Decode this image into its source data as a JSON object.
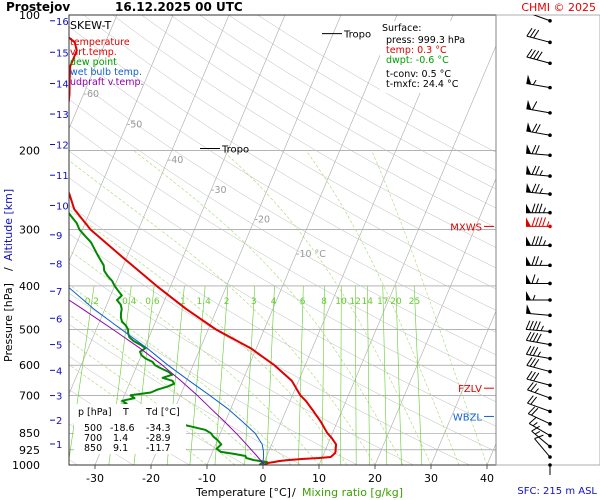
{
  "header": {
    "station": "Prostejov",
    "datetime": "16.12.2025 00 UTC",
    "credit": "CHMI © 2025"
  },
  "legend": {
    "title": "SKEW-T",
    "items": [
      {
        "label": "temperature",
        "color": "#e00000"
      },
      {
        "label": "virt.temp.",
        "color": "#e00000"
      },
      {
        "label": "dew point",
        "color": "#00a000"
      },
      {
        "label": "wet bulb temp.",
        "color": "#1060d0"
      },
      {
        "label": "udpraft v.temp.",
        "color": "#9000b0"
      }
    ]
  },
  "surface": {
    "title": "Surface:",
    "press": "press: 999.3 hPa",
    "temp": "temp: 0.3 °C",
    "dwpt": "dwpt: -0.6 °C",
    "tconv": "t-conv: 0.5 °C",
    "tmxfc": "t-mxfc: 24.4 °C"
  },
  "table": {
    "headers": [
      "p [hPa]",
      "T",
      "Td [°C]"
    ],
    "rows": [
      [
        "500",
        "-18.6",
        "-34.3"
      ],
      [
        "700",
        "1.4",
        "-28.9"
      ],
      [
        "850",
        "9.1",
        "-11.7"
      ]
    ]
  },
  "levels": {
    "tropo": "Tropo",
    "mxws": "MXWS",
    "fzlv": "FZLV",
    "wbzl": "WBZL",
    "sfc": "SFC: 215 m ASL"
  },
  "axes": {
    "xlabel_temp": "Temperature [°C]",
    "xlabel_sep": "/",
    "xlabel_mix": "Mixing ratio [g/kg]",
    "ylabel_p": "Pressure [hPa]",
    "ylabel_sep": "/",
    "ylabel_alt": "Altitude [km]"
  },
  "colors": {
    "temp": "#e00000",
    "dew": "#008800",
    "wetbulb": "#1060d0",
    "parcel": "#9000b0",
    "mixing": "#66cc33",
    "altitude": "#1010c0",
    "grid": "#999999"
  },
  "chart_data": {
    "type": "line",
    "title": "Prostejov 16.12.2025 00 UTC",
    "xlabel": "Temperature [°C] / Mixing ratio [g/kg]",
    "ylabel": "Pressure [hPa] / Altitude [km]",
    "xlim": [
      -37,
      44
    ],
    "ylim": [
      1000,
      100
    ],
    "y_scale": "log",
    "x_ticks": [
      -30,
      -20,
      -10,
      0,
      10,
      20,
      30,
      40
    ],
    "p_ticks": [
      100,
      200,
      300,
      400,
      500,
      600,
      700,
      850,
      925,
      1000
    ],
    "alt_ticks_km": [
      {
        "km": 1,
        "p": 898
      },
      {
        "km": 2,
        "p": 795
      },
      {
        "km": 3,
        "p": 701
      },
      {
        "km": 4,
        "p": 616
      },
      {
        "km": 5,
        "p": 540
      },
      {
        "km": 6,
        "p": 472
      },
      {
        "km": 7,
        "p": 411
      },
      {
        "km": 8,
        "p": 357
      },
      {
        "km": 9,
        "p": 308
      },
      {
        "km": 10,
        "p": 265
      },
      {
        "km": 11,
        "p": 227
      },
      {
        "km": 12,
        "p": 194
      },
      {
        "km": 13,
        "p": 166
      },
      {
        "km": 14,
        "p": 142
      },
      {
        "km": 15,
        "p": 121
      },
      {
        "km": 16,
        "p": 103
      }
    ],
    "isotherm_labels": [
      {
        "t": -80,
        "p": 110,
        "label": "-80 °C"
      },
      {
        "t": -70,
        "p": 130,
        "label": "-70"
      },
      {
        "t": -60,
        "p": 150,
        "label": "-60"
      },
      {
        "t": -50,
        "p": 175,
        "label": "-50"
      },
      {
        "t": -40,
        "p": 210,
        "label": "-40"
      },
      {
        "t": -30,
        "p": 245,
        "label": "-30"
      },
      {
        "t": -20,
        "p": 285,
        "label": "-20"
      },
      {
        "t": -10,
        "p": 340,
        "label": "-10 °C"
      }
    ],
    "mixing_ratios": [
      {
        "w": 0.2,
        "label": "0.2"
      },
      {
        "w": 0.4,
        "label": "0.4"
      },
      {
        "w": 0.6,
        "label": "0.6"
      },
      {
        "w": 1,
        "label": "1"
      },
      {
        "w": 1.4,
        "label": "1.4"
      },
      {
        "w": 2,
        "label": "2"
      },
      {
        "w": 3,
        "label": "3"
      },
      {
        "w": 4,
        "label": "4"
      },
      {
        "w": 6,
        "label": "6"
      },
      {
        "w": 8,
        "label": "8"
      },
      {
        "w": 10,
        "label": "10"
      },
      {
        "w": 12,
        "label": "12"
      },
      {
        "w": 14,
        "label": "14"
      },
      {
        "w": 17,
        "label": "17"
      },
      {
        "w": 20,
        "label": "20"
      },
      {
        "w": 25,
        "label": "25"
      }
    ],
    "level_markers": {
      "tropo": [
        110,
        198
      ],
      "mxws": 295,
      "fzlv": 675,
      "wbzl": 780
    },
    "series": [
      {
        "name": "temperature",
        "points": [
          [
            1000,
            0.3
          ],
          [
            990,
            0.7
          ],
          [
            985,
            1.8
          ],
          [
            980,
            2.5
          ],
          [
            975,
            4.0
          ],
          [
            970,
            6.5
          ],
          [
            965,
            9.5
          ],
          [
            960,
            11.5
          ],
          [
            940,
            12.0
          ],
          [
            900,
            11.5
          ],
          [
            870,
            10.2
          ],
          [
            850,
            9.1
          ],
          [
            800,
            7.0
          ],
          [
            760,
            5.0
          ],
          [
            720,
            2.8
          ],
          [
            700,
            1.4
          ],
          [
            650,
            -1.2
          ],
          [
            600,
            -5.5
          ],
          [
            550,
            -11.0
          ],
          [
            500,
            -18.6
          ],
          [
            450,
            -25.5
          ],
          [
            400,
            -32.5
          ],
          [
            350,
            -40.0
          ],
          [
            300,
            -48.5
          ],
          [
            270,
            -53.0
          ],
          [
            250,
            -55.0
          ],
          [
            230,
            -57.5
          ],
          [
            215,
            -58.8
          ],
          [
            200,
            -59.5
          ],
          [
            190,
            -60.2
          ],
          [
            180,
            -60.8
          ],
          [
            170,
            -61.2
          ],
          [
            160,
            -61.8
          ],
          [
            150,
            -62.5
          ],
          [
            140,
            -63.5
          ],
          [
            130,
            -64.5
          ],
          [
            120,
            -64.5
          ],
          [
            115,
            -65.5
          ],
          [
            112,
            -67.0
          ],
          [
            110,
            -68.0
          ],
          [
            105,
            -68.5
          ],
          [
            100,
            -68.8
          ]
        ]
      },
      {
        "name": "dew point",
        "points": [
          [
            1000,
            -0.6
          ],
          [
            990,
            -0.4
          ],
          [
            985,
            0.5
          ],
          [
            975,
            -2.0
          ],
          [
            965,
            -3.5
          ],
          [
            955,
            -3.8
          ],
          [
            945,
            -6.0
          ],
          [
            935,
            -8.5
          ],
          [
            920,
            -9.5
          ],
          [
            900,
            -9.0
          ],
          [
            880,
            -10.0
          ],
          [
            865,
            -11.0
          ],
          [
            850,
            -11.7
          ],
          [
            835,
            -13.0
          ],
          [
            820,
            -16.0
          ],
          [
            800,
            -20.0
          ],
          [
            790,
            -22.5
          ],
          [
            780,
            -22.0
          ],
          [
            770,
            -25.0
          ],
          [
            760,
            -27.5
          ],
          [
            750,
            -29.0
          ],
          [
            740,
            -30.5
          ],
          [
            730,
            -29.0
          ],
          [
            720,
            -30.0
          ],
          [
            710,
            -28.0
          ],
          [
            700,
            -28.9
          ],
          [
            690,
            -25.5
          ],
          [
            680,
            -24.5
          ],
          [
            670,
            -23.0
          ],
          [
            660,
            -22.0
          ],
          [
            650,
            -22.5
          ],
          [
            640,
            -24.5
          ],
          [
            630,
            -23.0
          ],
          [
            620,
            -24.0
          ],
          [
            610,
            -25.5
          ],
          [
            600,
            -26.8
          ],
          [
            590,
            -27.5
          ],
          [
            580,
            -29.0
          ],
          [
            570,
            -30.0
          ],
          [
            560,
            -30.5
          ],
          [
            550,
            -29.8
          ],
          [
            540,
            -31.0
          ],
          [
            530,
            -32.5
          ],
          [
            520,
            -33.5
          ],
          [
            510,
            -34.0
          ],
          [
            500,
            -34.3
          ],
          [
            490,
            -35.0
          ],
          [
            480,
            -36.0
          ],
          [
            470,
            -36.5
          ],
          [
            460,
            -36.8
          ],
          [
            450,
            -37.0
          ],
          [
            440,
            -37.5
          ],
          [
            430,
            -38.5
          ],
          [
            420,
            -38.0
          ],
          [
            410,
            -39.0
          ],
          [
            400,
            -40.0
          ],
          [
            390,
            -40.8
          ],
          [
            380,
            -42.0
          ],
          [
            370,
            -43.0
          ],
          [
            360,
            -43.5
          ],
          [
            350,
            -44.5
          ],
          [
            340,
            -45.5
          ],
          [
            330,
            -46.5
          ],
          [
            320,
            -47.5
          ],
          [
            310,
            -49.0
          ],
          [
            300,
            -50.5
          ],
          [
            290,
            -51.5
          ],
          [
            280,
            -53.0
          ],
          [
            270,
            -54.5
          ],
          [
            260,
            -56.0
          ],
          [
            250,
            -58.0
          ],
          [
            240,
            -61.0
          ],
          [
            230,
            -63.5
          ],
          [
            220,
            -67.5
          ],
          [
            210,
            -72.0
          ],
          [
            200,
            -75.5
          ],
          [
            190,
            -78.0
          ],
          [
            180,
            -80.0
          ],
          [
            170,
            -82.0
          ],
          [
            160,
            -84.0
          ],
          [
            150,
            -85.5
          ],
          [
            140,
            -87.0
          ],
          [
            130,
            -88.5
          ],
          [
            120,
            -89.0
          ],
          [
            110,
            -89.5
          ],
          [
            100,
            -90.0
          ]
        ]
      },
      {
        "name": "wet bulb temp.",
        "points": [
          [
            1000,
            -0.1
          ],
          [
            960,
            -0.5
          ],
          [
            930,
            -1.0
          ],
          [
            900,
            -1.7
          ],
          [
            850,
            -3.8
          ],
          [
            800,
            -7.0
          ],
          [
            750,
            -10.5
          ],
          [
            700,
            -14.8
          ],
          [
            650,
            -19.5
          ],
          [
            600,
            -24.5
          ],
          [
            550,
            -29.5
          ],
          [
            500,
            -35.5
          ],
          [
            450,
            -42.0
          ],
          [
            400,
            -48.5
          ],
          [
            375,
            -51.5
          ],
          [
            350,
            -56.0
          ]
        ]
      },
      {
        "name": "udpraft v.temp.",
        "points": [
          [
            1000,
            0.3
          ],
          [
            950,
            -2.0
          ],
          [
            900,
            -4.5
          ],
          [
            850,
            -7.2
          ],
          [
            800,
            -10.2
          ],
          [
            750,
            -13.5
          ],
          [
            700,
            -17.0
          ],
          [
            650,
            -21.0
          ],
          [
            600,
            -25.5
          ],
          [
            550,
            -30.8
          ],
          [
            500,
            -37.0
          ],
          [
            450,
            -44.0
          ],
          [
            400,
            -52.0
          ],
          [
            350,
            -60.5
          ],
          [
            300,
            -70.0
          ],
          [
            250,
            -80.0
          ],
          [
            200,
            -90.0
          ],
          [
            160,
            -99.0
          ]
        ]
      }
    ],
    "wind_barbs": [
      {
        "p": 103,
        "dir": 290,
        "kt": 25
      },
      {
        "p": 115,
        "dir": 285,
        "kt": 30
      },
      {
        "p": 128,
        "dir": 285,
        "kt": 40
      },
      {
        "p": 145,
        "dir": 280,
        "kt": 55
      },
      {
        "p": 165,
        "dir": 280,
        "kt": 60
      },
      {
        "p": 185,
        "dir": 280,
        "kt": 70
      },
      {
        "p": 205,
        "dir": 275,
        "kt": 70
      },
      {
        "p": 228,
        "dir": 275,
        "kt": 75
      },
      {
        "p": 250,
        "dir": 275,
        "kt": 75
      },
      {
        "p": 275,
        "dir": 270,
        "kt": 85
      },
      {
        "p": 295,
        "dir": 270,
        "kt": 95
      },
      {
        "p": 325,
        "dir": 270,
        "kt": 85
      },
      {
        "p": 360,
        "dir": 270,
        "kt": 75
      },
      {
        "p": 395,
        "dir": 270,
        "kt": 65
      },
      {
        "p": 430,
        "dir": 270,
        "kt": 55
      },
      {
        "p": 465,
        "dir": 275,
        "kt": 50
      },
      {
        "p": 505,
        "dir": 275,
        "kt": 45
      },
      {
        "p": 540,
        "dir": 280,
        "kt": 40
      },
      {
        "p": 580,
        "dir": 280,
        "kt": 35
      },
      {
        "p": 620,
        "dir": 285,
        "kt": 30
      },
      {
        "p": 665,
        "dir": 285,
        "kt": 30
      },
      {
        "p": 710,
        "dir": 290,
        "kt": 25
      },
      {
        "p": 760,
        "dir": 290,
        "kt": 20
      },
      {
        "p": 810,
        "dir": 295,
        "kt": 20
      },
      {
        "p": 860,
        "dir": 300,
        "kt": 15
      },
      {
        "p": 910,
        "dir": 310,
        "kt": 15
      },
      {
        "p": 960,
        "dir": 320,
        "kt": 10
      },
      {
        "p": 1000,
        "dir": 180,
        "kt": 5
      }
    ]
  }
}
